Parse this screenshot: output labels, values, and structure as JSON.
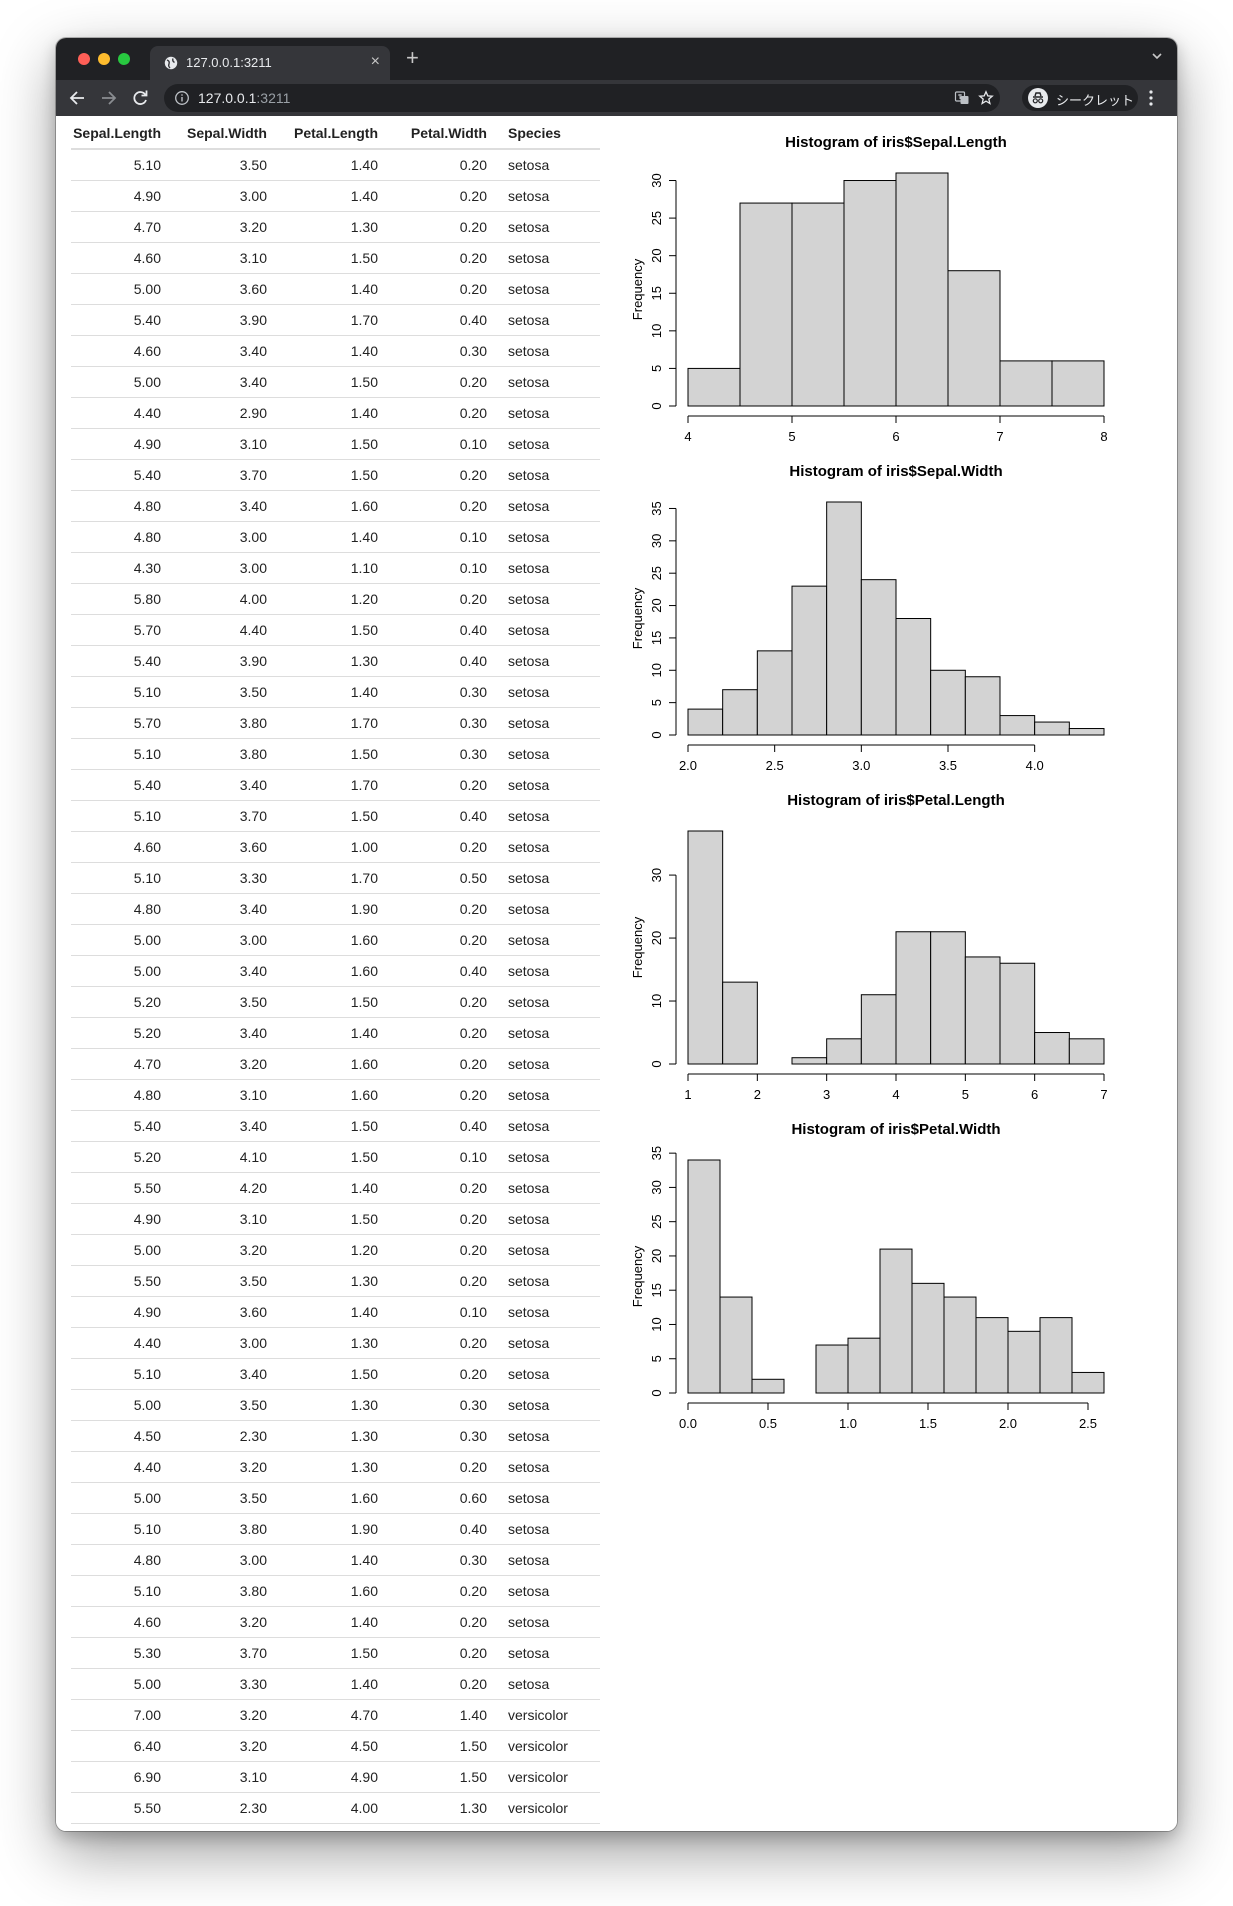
{
  "browser": {
    "tab_title": "127.0.0.1:3211",
    "tab_close": "×",
    "new_tab": "+",
    "url_host": "127.0.0.1",
    "url_port": ":3211",
    "incognito_label": "シークレット",
    "icons": [
      "back-icon",
      "forward-icon",
      "reload-icon",
      "info-icon",
      "translate-icon",
      "star-icon",
      "incognito-icon",
      "menu-icon",
      "tab-list-icon"
    ]
  },
  "table": {
    "headers": [
      "Sepal.Length",
      "Sepal.Width",
      "Petal.Length",
      "Petal.Width",
      "Species"
    ],
    "rows": [
      [
        "5.10",
        "3.50",
        "1.40",
        "0.20",
        "setosa"
      ],
      [
        "4.90",
        "3.00",
        "1.40",
        "0.20",
        "setosa"
      ],
      [
        "4.70",
        "3.20",
        "1.30",
        "0.20",
        "setosa"
      ],
      [
        "4.60",
        "3.10",
        "1.50",
        "0.20",
        "setosa"
      ],
      [
        "5.00",
        "3.60",
        "1.40",
        "0.20",
        "setosa"
      ],
      [
        "5.40",
        "3.90",
        "1.70",
        "0.40",
        "setosa"
      ],
      [
        "4.60",
        "3.40",
        "1.40",
        "0.30",
        "setosa"
      ],
      [
        "5.00",
        "3.40",
        "1.50",
        "0.20",
        "setosa"
      ],
      [
        "4.40",
        "2.90",
        "1.40",
        "0.20",
        "setosa"
      ],
      [
        "4.90",
        "3.10",
        "1.50",
        "0.10",
        "setosa"
      ],
      [
        "5.40",
        "3.70",
        "1.50",
        "0.20",
        "setosa"
      ],
      [
        "4.80",
        "3.40",
        "1.60",
        "0.20",
        "setosa"
      ],
      [
        "4.80",
        "3.00",
        "1.40",
        "0.10",
        "setosa"
      ],
      [
        "4.30",
        "3.00",
        "1.10",
        "0.10",
        "setosa"
      ],
      [
        "5.80",
        "4.00",
        "1.20",
        "0.20",
        "setosa"
      ],
      [
        "5.70",
        "4.40",
        "1.50",
        "0.40",
        "setosa"
      ],
      [
        "5.40",
        "3.90",
        "1.30",
        "0.40",
        "setosa"
      ],
      [
        "5.10",
        "3.50",
        "1.40",
        "0.30",
        "setosa"
      ],
      [
        "5.70",
        "3.80",
        "1.70",
        "0.30",
        "setosa"
      ],
      [
        "5.10",
        "3.80",
        "1.50",
        "0.30",
        "setosa"
      ],
      [
        "5.40",
        "3.40",
        "1.70",
        "0.20",
        "setosa"
      ],
      [
        "5.10",
        "3.70",
        "1.50",
        "0.40",
        "setosa"
      ],
      [
        "4.60",
        "3.60",
        "1.00",
        "0.20",
        "setosa"
      ],
      [
        "5.10",
        "3.30",
        "1.70",
        "0.50",
        "setosa"
      ],
      [
        "4.80",
        "3.40",
        "1.90",
        "0.20",
        "setosa"
      ],
      [
        "5.00",
        "3.00",
        "1.60",
        "0.20",
        "setosa"
      ],
      [
        "5.00",
        "3.40",
        "1.60",
        "0.40",
        "setosa"
      ],
      [
        "5.20",
        "3.50",
        "1.50",
        "0.20",
        "setosa"
      ],
      [
        "5.20",
        "3.40",
        "1.40",
        "0.20",
        "setosa"
      ],
      [
        "4.70",
        "3.20",
        "1.60",
        "0.20",
        "setosa"
      ],
      [
        "4.80",
        "3.10",
        "1.60",
        "0.20",
        "setosa"
      ],
      [
        "5.40",
        "3.40",
        "1.50",
        "0.40",
        "setosa"
      ],
      [
        "5.20",
        "4.10",
        "1.50",
        "0.10",
        "setosa"
      ],
      [
        "5.50",
        "4.20",
        "1.40",
        "0.20",
        "setosa"
      ],
      [
        "4.90",
        "3.10",
        "1.50",
        "0.20",
        "setosa"
      ],
      [
        "5.00",
        "3.20",
        "1.20",
        "0.20",
        "setosa"
      ],
      [
        "5.50",
        "3.50",
        "1.30",
        "0.20",
        "setosa"
      ],
      [
        "4.90",
        "3.60",
        "1.40",
        "0.10",
        "setosa"
      ],
      [
        "4.40",
        "3.00",
        "1.30",
        "0.20",
        "setosa"
      ],
      [
        "5.10",
        "3.40",
        "1.50",
        "0.20",
        "setosa"
      ],
      [
        "5.00",
        "3.50",
        "1.30",
        "0.30",
        "setosa"
      ],
      [
        "4.50",
        "2.30",
        "1.30",
        "0.30",
        "setosa"
      ],
      [
        "4.40",
        "3.20",
        "1.30",
        "0.20",
        "setosa"
      ],
      [
        "5.00",
        "3.50",
        "1.60",
        "0.60",
        "setosa"
      ],
      [
        "5.10",
        "3.80",
        "1.90",
        "0.40",
        "setosa"
      ],
      [
        "4.80",
        "3.00",
        "1.40",
        "0.30",
        "setosa"
      ],
      [
        "5.10",
        "3.80",
        "1.60",
        "0.20",
        "setosa"
      ],
      [
        "4.60",
        "3.20",
        "1.40",
        "0.20",
        "setosa"
      ],
      [
        "5.30",
        "3.70",
        "1.50",
        "0.20",
        "setosa"
      ],
      [
        "5.00",
        "3.30",
        "1.40",
        "0.20",
        "setosa"
      ],
      [
        "7.00",
        "3.20",
        "4.70",
        "1.40",
        "versicolor"
      ],
      [
        "6.40",
        "3.20",
        "4.50",
        "1.50",
        "versicolor"
      ],
      [
        "6.90",
        "3.10",
        "4.90",
        "1.50",
        "versicolor"
      ],
      [
        "5.50",
        "2.30",
        "4.00",
        "1.30",
        "versicolor"
      ]
    ]
  },
  "chart_data": [
    {
      "type": "bar",
      "title": "Histogram of iris$Sepal.Length",
      "xlabel": "iris$Sepal.Length",
      "ylabel": "Frequency",
      "bin_edges": [
        4,
        4.5,
        5,
        5.5,
        6,
        6.5,
        7,
        7.5,
        8
      ],
      "values": [
        5,
        27,
        27,
        30,
        31,
        18,
        6,
        6
      ],
      "xlim": [
        4,
        8
      ],
      "ylim": [
        0,
        31
      ],
      "xticks": [
        4,
        5,
        6,
        7,
        8
      ],
      "xtick_labels": [
        "4",
        "5",
        "6",
        "7",
        "8"
      ],
      "yticks": [
        0,
        5,
        10,
        15,
        20,
        25,
        30
      ],
      "ytick_labels": [
        "0",
        "5",
        "10",
        "15",
        "20",
        "25",
        "30"
      ],
      "bar_fill": "#d3d3d3"
    },
    {
      "type": "bar",
      "title": "Histogram of iris$Sepal.Width",
      "xlabel": "iris$Sepal.Width",
      "ylabel": "Frequency",
      "bin_edges": [
        2.0,
        2.2,
        2.4,
        2.6,
        2.8,
        3.0,
        3.2,
        3.4,
        3.6,
        3.8,
        4.0,
        4.2,
        4.4
      ],
      "values": [
        4,
        7,
        13,
        23,
        36,
        24,
        18,
        10,
        9,
        3,
        2,
        1
      ],
      "xlim": [
        2.0,
        4.4
      ],
      "ylim": [
        0,
        36
      ],
      "xticks": [
        2.0,
        2.5,
        3.0,
        3.5,
        4.0
      ],
      "xtick_labels": [
        "2.0",
        "2.5",
        "3.0",
        "3.5",
        "4.0"
      ],
      "yticks": [
        0,
        5,
        10,
        15,
        20,
        25,
        30,
        35
      ],
      "ytick_labels": [
        "0",
        "5",
        "10",
        "15",
        "20",
        "25",
        "30",
        "35"
      ],
      "bar_fill": "#d3d3d3"
    },
    {
      "type": "bar",
      "title": "Histogram of iris$Petal.Length",
      "xlabel": "iris$Petal.Length",
      "ylabel": "Frequency",
      "bin_edges": [
        1,
        1.5,
        2,
        2.5,
        3,
        3.5,
        4,
        4.5,
        5,
        5.5,
        6,
        6.5,
        7
      ],
      "values": [
        37,
        13,
        0,
        1,
        4,
        11,
        21,
        21,
        17,
        16,
        5,
        4
      ],
      "xlim": [
        1,
        7
      ],
      "ylim": [
        0,
        37
      ],
      "xticks": [
        1,
        2,
        3,
        4,
        5,
        6,
        7
      ],
      "xtick_labels": [
        "1",
        "2",
        "3",
        "4",
        "5",
        "6",
        "7"
      ],
      "yticks": [
        0,
        10,
        20,
        30
      ],
      "ytick_labels": [
        "0",
        "10",
        "20",
        "30"
      ],
      "bar_fill": "#d3d3d3"
    },
    {
      "type": "bar",
      "title": "Histogram of iris$Petal.Width",
      "xlabel": "iris$Petal.Width",
      "ylabel": "Frequency",
      "bin_edges": [
        0.0,
        0.2,
        0.4,
        0.6,
        0.8,
        1.0,
        1.2,
        1.4,
        1.6,
        1.8,
        2.0,
        2.2,
        2.4,
        2.6
      ],
      "values": [
        34,
        14,
        2,
        0,
        7,
        8,
        21,
        16,
        14,
        11,
        9,
        11,
        3
      ],
      "xlim": [
        0.0,
        2.6
      ],
      "ylim": [
        0,
        34
      ],
      "xticks": [
        0.0,
        0.5,
        1.0,
        1.5,
        2.0,
        2.5
      ],
      "xtick_labels": [
        "0.0",
        "0.5",
        "1.0",
        "1.5",
        "2.0",
        "2.5"
      ],
      "yticks": [
        0,
        5,
        10,
        15,
        20,
        25,
        30,
        35
      ],
      "ytick_labels": [
        "0",
        "5",
        "10",
        "15",
        "20",
        "25",
        "30",
        "35"
      ],
      "bar_fill": "#d3d3d3"
    }
  ]
}
